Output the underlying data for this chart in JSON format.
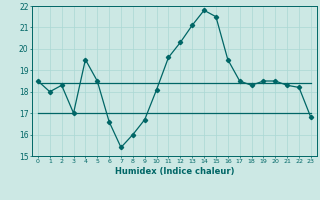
{
  "xlabel": "Humidex (Indice chaleur)",
  "background_color": "#cce8e4",
  "line_color": "#006666",
  "grid_color": "#aad8d4",
  "x": [
    0,
    1,
    2,
    3,
    4,
    5,
    6,
    7,
    8,
    9,
    10,
    11,
    12,
    13,
    14,
    15,
    16,
    17,
    18,
    19,
    20,
    21,
    22,
    23
  ],
  "y_main": [
    18.5,
    18.0,
    18.3,
    17.0,
    19.5,
    18.5,
    16.6,
    15.4,
    16.0,
    16.7,
    18.1,
    19.6,
    20.3,
    21.1,
    21.8,
    21.5,
    19.5,
    18.5,
    18.3,
    18.5,
    18.5,
    18.3,
    18.2,
    16.8
  ],
  "y_min": [
    17.0,
    17.0,
    17.0,
    17.0,
    17.0,
    17.0,
    17.0,
    17.0,
    17.0,
    17.0,
    17.0,
    17.0,
    17.0,
    17.0,
    17.0,
    17.0,
    17.0,
    17.0,
    17.0,
    17.0,
    17.0,
    17.0,
    17.0,
    17.0
  ],
  "y_max": [
    18.4,
    18.4,
    18.4,
    18.4,
    18.4,
    18.4,
    18.4,
    18.4,
    18.4,
    18.4,
    18.4,
    18.4,
    18.4,
    18.4,
    18.4,
    18.4,
    18.4,
    18.4,
    18.4,
    18.4,
    18.4,
    18.4,
    18.4,
    18.4
  ],
  "ylim": [
    15,
    22
  ],
  "yticks": [
    15,
    16,
    17,
    18,
    19,
    20,
    21,
    22
  ],
  "xticks": [
    0,
    1,
    2,
    3,
    4,
    5,
    6,
    7,
    8,
    9,
    10,
    11,
    12,
    13,
    14,
    15,
    16,
    17,
    18,
    19,
    20,
    21,
    22,
    23
  ],
  "marker": "D",
  "markersize": 2.2,
  "linewidth": 0.9
}
